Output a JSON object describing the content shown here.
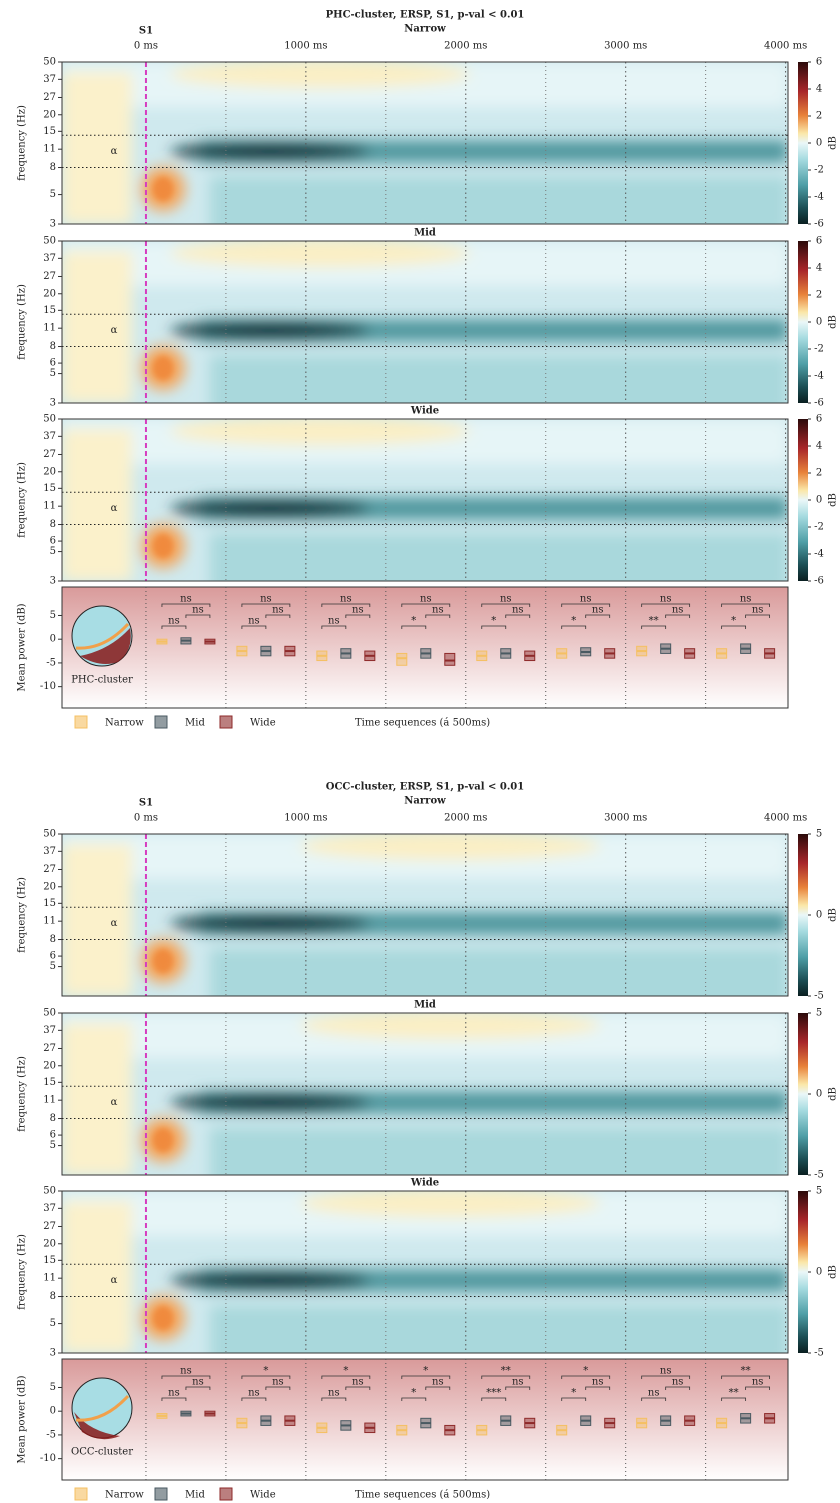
{
  "figures": [
    {
      "title": "PHC-cluster, ERSP, S1, p-val < 0.01",
      "event": {
        "label": "S1",
        "time": 0
      },
      "xlim": [
        -525,
        4015
      ],
      "time_ticks": [
        {
          "value": 0,
          "label": "0 ms"
        },
        {
          "value": 1000,
          "label": "1000 ms"
        },
        {
          "value": 2000,
          "label": "2000 ms"
        },
        {
          "value": 3000,
          "label": "3000 ms"
        },
        {
          "value": 4000,
          "label": "4000 ms"
        }
      ],
      "ylabel": "frequency (Hz)",
      "flim": [
        3,
        50
      ],
      "log_scale": true,
      "alpha": "α",
      "alpha_band": [
        8,
        14
      ],
      "colorbar": {
        "label": "dB",
        "lim": [
          -6,
          6
        ],
        "ticks": [
          6,
          4,
          2,
          0,
          -2,
          -4,
          -6
        ]
      },
      "panels": [
        {
          "label": "Narrow",
          "freq_ticks": [
            50,
            37,
            27,
            20,
            15,
            11,
            8,
            5,
            3
          ]
        },
        {
          "label": "Mid",
          "freq_ticks": [
            50,
            37,
            27,
            20,
            15,
            11,
            8,
            6,
            5,
            3
          ]
        },
        {
          "label": "Wide",
          "freq_ticks": [
            50,
            37,
            27,
            20,
            15,
            11,
            8,
            6,
            5,
            3
          ]
        }
      ],
      "boxplot": {
        "ylabel": "Mean power (dB)",
        "cluster": "PHC-cluster",
        "xlabel": "Time sequences (á 500ms)",
        "ylim": [
          -14.5,
          11
        ],
        "yticks": [
          5,
          0,
          -5,
          -10
        ],
        "groups": [
          {
            "name": "Narrow",
            "color": "#f5c063"
          },
          {
            "name": "Mid",
            "color": "#4a5a62"
          },
          {
            "name": "Wide",
            "color": "#8e2a2a"
          }
        ],
        "windows": [
          {
            "boxes": [
              [
                -1,
                -0.5,
                0
              ],
              [
                -1,
                -0.3,
                0.3
              ],
              [
                -1,
                -0.5,
                0
              ]
            ],
            "sig": [
              "ns",
              "ns",
              "ns"
            ]
          },
          {
            "boxes": [
              [
                -3.5,
                -2.5,
                -1.5
              ],
              [
                -3.5,
                -2.5,
                -1.5
              ],
              [
                -3.5,
                -2.5,
                -1.5
              ]
            ],
            "sig": [
              "ns",
              "ns",
              "ns"
            ]
          },
          {
            "boxes": [
              [
                -4.5,
                -3.5,
                -2.5
              ],
              [
                -4,
                -3,
                -2
              ],
              [
                -4.5,
                -3.5,
                -2.5
              ]
            ],
            "sig": [
              "ns",
              "ns",
              "ns"
            ]
          },
          {
            "boxes": [
              [
                -5.5,
                -4,
                -3
              ],
              [
                -4,
                -3,
                -2
              ],
              [
                -5.5,
                -4.5,
                -3
              ]
            ],
            "sig": [
              "ns",
              "*",
              "ns"
            ]
          },
          {
            "boxes": [
              [
                -4.5,
                -3.5,
                -2.5
              ],
              [
                -4,
                -3,
                -2
              ],
              [
                -4.5,
                -3.5,
                -2.5
              ]
            ],
            "sig": [
              "ns",
              "*",
              "ns"
            ]
          },
          {
            "boxes": [
              [
                -4,
                -3,
                -2
              ],
              [
                -3.5,
                -2.7,
                -1.8
              ],
              [
                -4,
                -3,
                -2
              ]
            ],
            "sig": [
              "ns",
              "*",
              "ns"
            ]
          },
          {
            "boxes": [
              [
                -3.5,
                -2.5,
                -1.5
              ],
              [
                -3,
                -2,
                -1
              ],
              [
                -4,
                -3,
                -2
              ]
            ],
            "sig": [
              "ns",
              "**",
              "ns"
            ]
          },
          {
            "boxes": [
              [
                -4,
                -3,
                -2
              ],
              [
                -3,
                -2,
                -1
              ],
              [
                -4,
                -3,
                -2
              ]
            ],
            "sig": [
              "ns",
              "*",
              "ns"
            ]
          }
        ]
      }
    },
    {
      "title": "OCC-cluster, ERSP, S1, p-val < 0.01",
      "event": {
        "label": "S1",
        "time": 0
      },
      "xlim": [
        -525,
        4015
      ],
      "time_ticks": [
        {
          "value": 0,
          "label": "0 ms"
        },
        {
          "value": 1000,
          "label": "1000 ms"
        },
        {
          "value": 2000,
          "label": "2000 ms"
        },
        {
          "value": 3000,
          "label": "3000 ms"
        },
        {
          "value": 4000,
          "label": "4000 ms"
        }
      ],
      "ylabel": "frequency (Hz)",
      "flim": [
        3,
        50
      ],
      "log_scale": true,
      "alpha": "α",
      "alpha_band": [
        8,
        14
      ],
      "colorbar": {
        "label": "dB",
        "lim": [
          -5,
          5
        ],
        "ticks": [
          5,
          0,
          -5
        ]
      },
      "panels": [
        {
          "label": "Narrow",
          "freq_ticks": [
            50,
            37,
            27,
            20,
            15,
            11,
            8,
            6,
            5
          ]
        },
        {
          "label": "Mid",
          "freq_ticks": [
            50,
            37,
            27,
            20,
            15,
            11,
            8,
            6,
            5
          ]
        },
        {
          "label": "Wide",
          "freq_ticks": [
            50,
            37,
            27,
            20,
            15,
            11,
            8,
            5,
            3
          ]
        }
      ],
      "boxplot": {
        "ylabel": "Mean power (dB)",
        "cluster": "OCC-cluster",
        "xlabel": "Time sequences (á 500ms)",
        "ylim": [
          -14.5,
          11
        ],
        "yticks": [
          5,
          0,
          -5,
          -10
        ],
        "groups": [
          {
            "name": "Narrow",
            "color": "#f5c063"
          },
          {
            "name": "Mid",
            "color": "#4a5a62"
          },
          {
            "name": "Wide",
            "color": "#8e2a2a"
          }
        ],
        "windows": [
          {
            "boxes": [
              [
                -1.5,
                -1,
                -0.5
              ],
              [
                -1,
                -0.5,
                0
              ],
              [
                -1,
                -0.5,
                0
              ]
            ],
            "sig": [
              "ns",
              "ns",
              "ns"
            ]
          },
          {
            "boxes": [
              [
                -3.5,
                -2.5,
                -1.5
              ],
              [
                -3,
                -2,
                -1
              ],
              [
                -3,
                -2,
                -1
              ]
            ],
            "sig": [
              "*",
              "ns",
              "ns"
            ]
          },
          {
            "boxes": [
              [
                -4.5,
                -3.5,
                -2.5
              ],
              [
                -4,
                -3,
                -2
              ],
              [
                -4.5,
                -3.5,
                -2.5
              ]
            ],
            "sig": [
              "*",
              "ns",
              "ns"
            ]
          },
          {
            "boxes": [
              [
                -5,
                -4,
                -3
              ],
              [
                -3.5,
                -2.5,
                -1.5
              ],
              [
                -5,
                -4,
                -3
              ]
            ],
            "sig": [
              "*",
              "*",
              "ns"
            ]
          },
          {
            "boxes": [
              [
                -5,
                -4,
                -3
              ],
              [
                -3,
                -2,
                -1
              ],
              [
                -3.5,
                -2.5,
                -1.5
              ]
            ],
            "sig": [
              "**",
              "***",
              "ns"
            ]
          },
          {
            "boxes": [
              [
                -5,
                -4,
                -3
              ],
              [
                -3,
                -2,
                -1
              ],
              [
                -3.5,
                -2.5,
                -1.5
              ]
            ],
            "sig": [
              "*",
              "*",
              "ns"
            ]
          },
          {
            "boxes": [
              [
                -3.5,
                -2.5,
                -1.5
              ],
              [
                -3,
                -2,
                -1
              ],
              [
                -3,
                -2,
                -1
              ]
            ],
            "sig": [
              "ns",
              "ns",
              "ns"
            ]
          },
          {
            "boxes": [
              [
                -3.5,
                -2.5,
                -1.5
              ],
              [
                -2.5,
                -1.5,
                -0.5
              ],
              [
                -2.5,
                -1.5,
                -0.5
              ]
            ],
            "sig": [
              "**",
              "**",
              "ns"
            ]
          }
        ]
      }
    }
  ]
}
